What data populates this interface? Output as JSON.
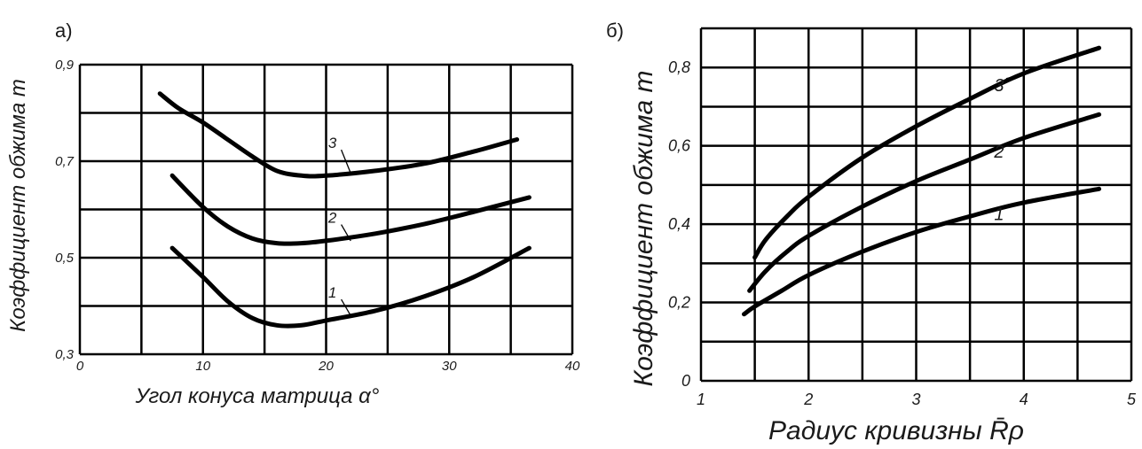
{
  "chart_data": [
    {
      "type": "line",
      "panel_label": "а)",
      "xlabel": "Угол конуса матрица α°",
      "ylabel": "Коэффициент обжима m",
      "xlim": [
        0,
        40
      ],
      "ylim": [
        0.3,
        0.9
      ],
      "x_tick_labels": [
        "0",
        "10",
        "20",
        "30",
        "40"
      ],
      "y_tick_labels": [
        "0,3",
        "0,5",
        "0,7",
        "0,9"
      ],
      "grid": true,
      "series": [
        {
          "name": "1",
          "x": [
            7.5,
            10,
            12,
            14,
            16,
            18,
            20,
            24,
            28,
            32,
            36.5
          ],
          "y": [
            0.52,
            0.46,
            0.41,
            0.375,
            0.36,
            0.36,
            0.37,
            0.39,
            0.42,
            0.46,
            0.52
          ]
        },
        {
          "name": "2",
          "x": [
            7.5,
            10,
            12,
            14,
            16,
            18,
            20,
            24,
            28,
            32,
            36.5
          ],
          "y": [
            0.67,
            0.605,
            0.565,
            0.54,
            0.53,
            0.53,
            0.535,
            0.55,
            0.57,
            0.595,
            0.625
          ]
        },
        {
          "name": "3",
          "x": [
            6.5,
            8,
            10,
            12,
            14,
            16,
            18,
            20,
            24,
            28,
            32,
            35.5
          ],
          "y": [
            0.84,
            0.81,
            0.78,
            0.745,
            0.71,
            0.68,
            0.67,
            0.67,
            0.68,
            0.695,
            0.72,
            0.745
          ]
        }
      ]
    },
    {
      "type": "line",
      "panel_label": "б)",
      "xlabel": "Радиус кривизны R̄ρ",
      "ylabel": "Коэффициент обжима m",
      "xlim": [
        1,
        5
      ],
      "ylim": [
        0,
        0.9
      ],
      "x_tick_labels": [
        "1",
        "2",
        "3",
        "4",
        "5"
      ],
      "y_tick_labels": [
        "0",
        "0,2",
        "0,4",
        "0,6",
        "0,8"
      ],
      "grid": true,
      "series": [
        {
          "name": "1",
          "x": [
            1.4,
            1.5,
            1.75,
            2.0,
            2.5,
            3.0,
            3.5,
            4.0,
            4.7
          ],
          "y": [
            0.17,
            0.19,
            0.23,
            0.27,
            0.33,
            0.38,
            0.42,
            0.455,
            0.49
          ]
        },
        {
          "name": "2",
          "x": [
            1.45,
            1.6,
            1.8,
            2.0,
            2.5,
            3.0,
            3.5,
            4.0,
            4.7
          ],
          "y": [
            0.23,
            0.28,
            0.33,
            0.37,
            0.445,
            0.51,
            0.565,
            0.62,
            0.68
          ]
        },
        {
          "name": "3",
          "x": [
            1.5,
            1.6,
            1.8,
            2.0,
            2.5,
            3.0,
            3.5,
            4.0,
            4.7
          ],
          "y": [
            0.315,
            0.36,
            0.42,
            0.47,
            0.57,
            0.65,
            0.72,
            0.785,
            0.85
          ]
        }
      ]
    }
  ]
}
